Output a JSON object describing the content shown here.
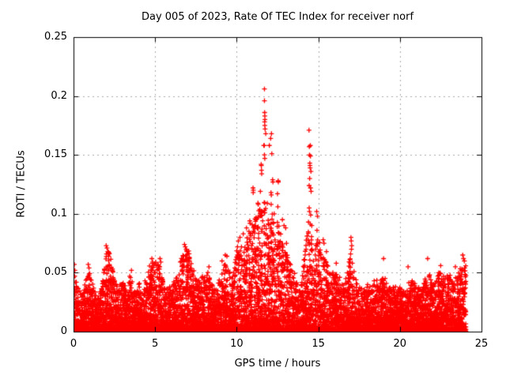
{
  "chart_data": {
    "type": "scatter",
    "title": "Day 005 of 2023, Rate Of TEC Index for receiver norf",
    "xlabel": "GPS time / hours",
    "ylabel": "ROTI / TECUs",
    "xlim": [
      0,
      25
    ],
    "ylim": [
      0,
      0.25
    ],
    "xticks": [
      0,
      5,
      10,
      15,
      20,
      25
    ],
    "yticks": [
      0,
      0.05,
      0.1,
      0.15,
      0.2,
      0.25
    ],
    "grid": true,
    "legend": "none",
    "marker": {
      "shape": "plus",
      "color": "#ff0000",
      "size": 7
    },
    "colors": {
      "marker": "#ff0000",
      "grid": "#a9a9a9",
      "border": "#000000",
      "background": "#ffffff",
      "text": "#000000"
    },
    "data_hour_range": [
      0,
      24.05
    ],
    "band_envelope": {
      "comment": "top of dense scatter band (ROTI/TECUs) sampled every 0.25 h from 0 to 24",
      "step_hours": 0.25,
      "start_hour": 0,
      "dense_top": [
        0.05,
        0.04,
        0.03,
        0.044,
        0.056,
        0.036,
        0.028,
        0.042,
        0.066,
        0.07,
        0.044,
        0.036,
        0.046,
        0.038,
        0.05,
        0.034,
        0.042,
        0.036,
        0.052,
        0.058,
        0.06,
        0.058,
        0.044,
        0.036,
        0.04,
        0.044,
        0.058,
        0.07,
        0.072,
        0.06,
        0.044,
        0.05,
        0.046,
        0.052,
        0.04,
        0.036,
        0.05,
        0.06,
        0.052,
        0.048,
        0.07,
        0.078,
        0.072,
        0.086,
        0.1,
        0.102,
        0.105,
        0.115,
        0.105,
        0.105,
        0.095,
        0.08,
        0.068,
        0.06,
        0.055,
        0.038,
        0.045,
        0.08,
        0.095,
        0.07,
        0.082,
        0.068,
        0.06,
        0.048,
        0.052,
        0.048,
        0.04,
        0.052,
        0.066,
        0.048,
        0.04,
        0.036,
        0.042,
        0.038,
        0.046,
        0.04,
        0.05,
        0.04,
        0.036,
        0.042,
        0.038,
        0.034,
        0.042,
        0.046,
        0.04,
        0.036,
        0.044,
        0.05,
        0.044,
        0.048,
        0.052,
        0.046,
        0.05,
        0.044,
        0.048,
        0.056,
        0.06
      ]
    },
    "outlier_points": [
      [
        0.05,
        0.057
      ],
      [
        0.08,
        0.052
      ],
      [
        0.9,
        0.057
      ],
      [
        0.95,
        0.054
      ],
      [
        2.0,
        0.073
      ],
      [
        2.05,
        0.071
      ],
      [
        2.1,
        0.068
      ],
      [
        2.02,
        0.066
      ],
      [
        2.15,
        0.064
      ],
      [
        3.55,
        0.052
      ],
      [
        4.8,
        0.062
      ],
      [
        4.85,
        0.059
      ],
      [
        5.3,
        0.062
      ],
      [
        5.35,
        0.059
      ],
      [
        6.8,
        0.074
      ],
      [
        6.85,
        0.072
      ],
      [
        6.9,
        0.07
      ],
      [
        6.95,
        0.068
      ],
      [
        7.0,
        0.066
      ],
      [
        6.75,
        0.064
      ],
      [
        8.3,
        0.055
      ],
      [
        9.1,
        0.06
      ],
      [
        9.3,
        0.065
      ],
      [
        9.4,
        0.064
      ],
      [
        10.05,
        0.072
      ],
      [
        10.1,
        0.077
      ],
      [
        10.2,
        0.08
      ],
      [
        10.4,
        0.083
      ],
      [
        10.6,
        0.088
      ],
      [
        10.8,
        0.094
      ],
      [
        10.82,
        0.092
      ],
      [
        11.0,
        0.122
      ],
      [
        11.02,
        0.12
      ],
      [
        11.01,
        0.118
      ],
      [
        11.3,
        0.109
      ],
      [
        11.32,
        0.108
      ],
      [
        11.45,
        0.119
      ],
      [
        11.5,
        0.142
      ],
      [
        11.51,
        0.141
      ],
      [
        11.52,
        0.137
      ],
      [
        11.53,
        0.134
      ],
      [
        11.7,
        0.206
      ],
      [
        11.7,
        0.196
      ],
      [
        11.71,
        0.186
      ],
      [
        11.72,
        0.183
      ],
      [
        11.73,
        0.18
      ],
      [
        11.71,
        0.178
      ],
      [
        11.72,
        0.175
      ],
      [
        11.74,
        0.172
      ],
      [
        11.78,
        0.168
      ],
      [
        11.66,
        0.158
      ],
      [
        11.69,
        0.158
      ],
      [
        11.7,
        0.15
      ],
      [
        11.72,
        0.147
      ],
      [
        11.7,
        0.103
      ],
      [
        11.72,
        0.101
      ],
      [
        12.0,
        0.158
      ],
      [
        12.08,
        0.164
      ],
      [
        12.13,
        0.168
      ],
      [
        12.15,
        0.151
      ],
      [
        12.1,
        0.118
      ],
      [
        12.12,
        0.116
      ],
      [
        12.11,
        0.108
      ],
      [
        12.2,
        0.129
      ],
      [
        12.22,
        0.127
      ],
      [
        12.3,
        0.1
      ],
      [
        12.25,
        0.092
      ],
      [
        12.5,
        0.117
      ],
      [
        12.52,
        0.106
      ],
      [
        12.54,
        0.128
      ],
      [
        12.55,
        0.127
      ],
      [
        12.8,
        0.095
      ],
      [
        12.9,
        0.09
      ],
      [
        13.0,
        0.088
      ],
      [
        13.05,
        0.075
      ],
      [
        14.43,
        0.171
      ],
      [
        14.51,
        0.158
      ],
      [
        14.45,
        0.157
      ],
      [
        14.46,
        0.15
      ],
      [
        14.52,
        0.149
      ],
      [
        14.48,
        0.143
      ],
      [
        14.49,
        0.141
      ],
      [
        14.5,
        0.139
      ],
      [
        14.55,
        0.136
      ],
      [
        14.47,
        0.13
      ],
      [
        14.44,
        0.124
      ],
      [
        14.52,
        0.122
      ],
      [
        14.56,
        0.119
      ],
      [
        14.44,
        0.105
      ],
      [
        14.46,
        0.102
      ],
      [
        14.53,
        0.099
      ],
      [
        14.4,
        0.093
      ],
      [
        14.6,
        0.09
      ],
      [
        14.9,
        0.102
      ],
      [
        14.95,
        0.098
      ],
      [
        14.92,
        0.086
      ],
      [
        15.3,
        0.078
      ],
      [
        15.35,
        0.075
      ],
      [
        15.5,
        0.068
      ],
      [
        16.1,
        0.058
      ],
      [
        17.0,
        0.08
      ],
      [
        17.02,
        0.077
      ],
      [
        17.05,
        0.073
      ],
      [
        17.03,
        0.07
      ],
      [
        16.98,
        0.066
      ],
      [
        19.0,
        0.062
      ],
      [
        20.5,
        0.055
      ],
      [
        21.7,
        0.062
      ],
      [
        22.5,
        0.056
      ],
      [
        23.4,
        0.055
      ],
      [
        23.85,
        0.065
      ],
      [
        23.9,
        0.062
      ],
      [
        23.95,
        0.06
      ]
    ],
    "scatter_generation": {
      "n_points": 9000,
      "power": 2.3,
      "seed": 20230105
    }
  }
}
